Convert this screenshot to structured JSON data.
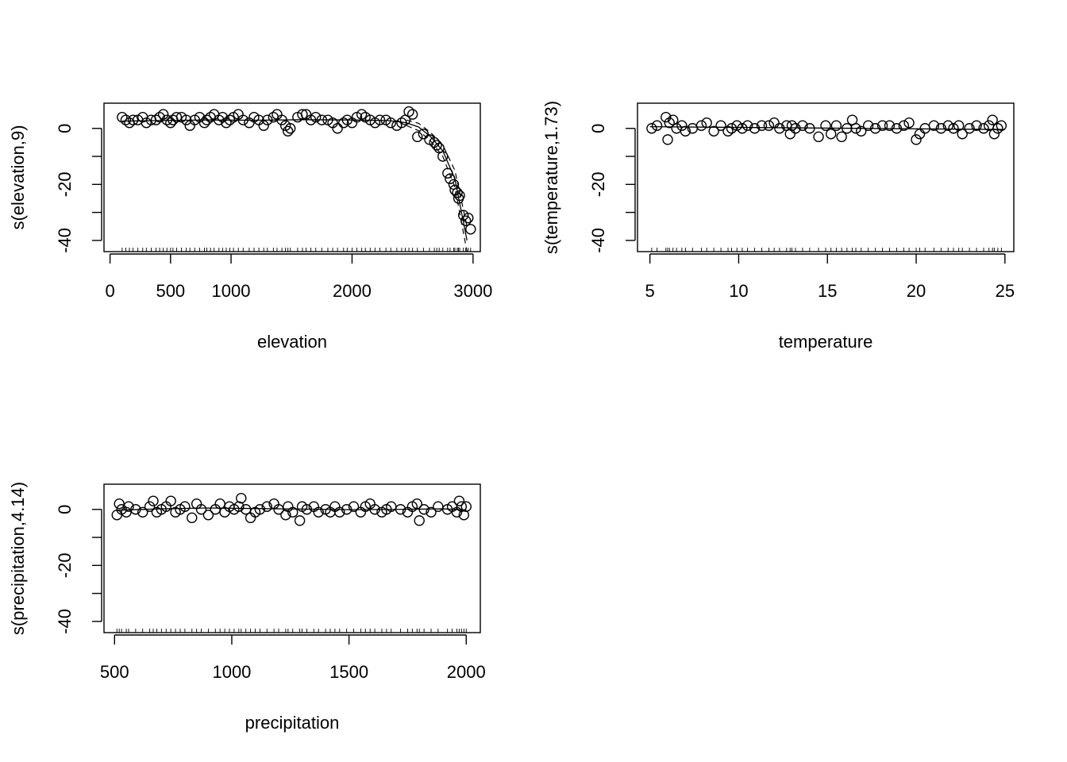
{
  "chart_data": [
    {
      "type": "scatter",
      "title": "",
      "xlabel": "elevation",
      "ylabel": "s(elevation,9)",
      "xlim": [
        -50,
        3060
      ],
      "ylim": [
        -44,
        9
      ],
      "xticks": [
        0,
        500,
        1000,
        2000,
        3000
      ],
      "xtick_labels": [
        "0",
        "500",
        "1000",
        "2000",
        "3000"
      ],
      "yticks": [
        0,
        -20,
        -40
      ],
      "ytick_labels": [
        "0",
        "-20",
        "-40"
      ],
      "ytick_minor": [
        -10,
        -30
      ],
      "grid": false,
      "smooth": {
        "x": [
          100,
          400,
          800,
          1200,
          1600,
          2000,
          2300,
          2450,
          2550,
          2650,
          2750,
          2850,
          2950
        ],
        "y": [
          2.6,
          2.8,
          3.0,
          2.9,
          3.1,
          3.0,
          2.8,
          2.0,
          0.5,
          -3,
          -8,
          -18,
          -40
        ]
      },
      "band_upper": {
        "x": [
          2450,
          2550,
          2650,
          2750,
          2850,
          2950
        ],
        "y": [
          3.0,
          1.8,
          -1.5,
          -6,
          -15,
          -35
        ]
      },
      "band_lower": {
        "x": [
          2450,
          2550,
          2650,
          2750,
          2850,
          2950
        ],
        "y": [
          1.0,
          -0.8,
          -4.5,
          -10,
          -21,
          -44
        ]
      },
      "points": {
        "x": [
          100,
          130,
          160,
          190,
          230,
          270,
          300,
          340,
          380,
          410,
          440,
          470,
          500,
          520,
          550,
          590,
          630,
          660,
          700,
          740,
          780,
          800,
          830,
          860,
          900,
          930,
          960,
          990,
          1020,
          1060,
          1100,
          1150,
          1190,
          1230,
          1270,
          1300,
          1350,
          1380,
          1420,
          1450,
          1470,
          1490,
          1550,
          1590,
          1620,
          1660,
          1700,
          1750,
          1800,
          1840,
          1880,
          1930,
          1960,
          2000,
          2040,
          2080,
          2110,
          2150,
          2190,
          2230,
          2280,
          2320,
          2370,
          2410,
          2440,
          2470,
          2500,
          2540,
          2590,
          2640,
          2680,
          2700,
          2720,
          2750,
          2790,
          2810,
          2840,
          2850,
          2870,
          2880,
          2890,
          2920,
          2940,
          2960,
          2980
        ],
        "y": [
          4,
          3,
          2,
          3,
          3,
          4,
          2,
          3,
          3,
          4,
          5,
          3,
          2,
          3,
          4,
          4,
          3,
          1,
          3,
          4,
          2,
          3,
          4,
          5,
          3,
          4,
          2,
          3,
          4,
          5,
          3,
          2,
          4,
          3,
          1,
          3,
          4,
          5,
          3,
          1,
          -1,
          0,
          4,
          5,
          5,
          3,
          4,
          3,
          3,
          2,
          0,
          2,
          3,
          2,
          4,
          5,
          4,
          3,
          2,
          3,
          3,
          2,
          1,
          2,
          3,
          6,
          5,
          -3,
          -2,
          -4,
          -5,
          -6,
          -7,
          -10,
          -16,
          -18,
          -20,
          -22,
          -23,
          -25,
          -24,
          -31,
          -33,
          -32,
          -36
        ]
      }
    },
    {
      "type": "scatter",
      "title": "",
      "xlabel": "temperature",
      "ylabel": "s(temperature,1.73)",
      "xlim": [
        4.3,
        25.5
      ],
      "ylim": [
        -44,
        9
      ],
      "xticks": [
        5,
        10,
        15,
        20,
        25
      ],
      "xtick_labels": [
        "5",
        "10",
        "15",
        "20",
        "25"
      ],
      "yticks": [
        0,
        -20,
        -40
      ],
      "ytick_labels": [
        "0",
        "-20",
        "-40"
      ],
      "ytick_minor": [
        -10,
        -30
      ],
      "grid": false,
      "smooth": {
        "x": [
          5,
          25
        ],
        "y": [
          0.6,
          -0.4
        ]
      },
      "points": {
        "x": [
          5.1,
          5.4,
          5.9,
          6.0,
          6.1,
          6.3,
          6.5,
          6.8,
          7.0,
          7.4,
          7.9,
          8.2,
          8.6,
          9.0,
          9.4,
          9.6,
          9.9,
          10.2,
          10.5,
          10.9,
          11.3,
          11.7,
          12.0,
          12.3,
          12.7,
          12.9,
          13.0,
          13.2,
          13.6,
          14.0,
          14.5,
          14.9,
          15.2,
          15.5,
          15.8,
          16.1,
          16.4,
          16.6,
          16.9,
          17.3,
          17.7,
          18.1,
          18.5,
          18.9,
          19.3,
          19.6,
          20.0,
          20.2,
          20.5,
          21.0,
          21.4,
          21.8,
          22.1,
          22.4,
          22.6,
          23.0,
          23.4,
          23.8,
          24.1,
          24.3,
          24.4,
          24.6,
          24.8
        ],
        "y": [
          0,
          1,
          4,
          -4,
          2,
          3,
          0,
          1,
          -1,
          0,
          1,
          2,
          -1,
          1,
          -1,
          0,
          1,
          0,
          1,
          0,
          1,
          1,
          2,
          0,
          1,
          -2,
          1,
          0,
          1,
          0,
          -3,
          1,
          -2,
          1,
          -3,
          0,
          3,
          0,
          -1,
          1,
          0,
          1,
          1,
          0,
          1,
          2,
          -4,
          -2,
          0,
          1,
          0,
          1,
          0,
          1,
          -2,
          0,
          1,
          0,
          1,
          3,
          -2,
          0,
          1
        ]
      }
    },
    {
      "type": "scatter",
      "title": "",
      "xlabel": "precipitation",
      "ylabel": "s(precipitation,4.14)",
      "xlim": [
        455,
        2060
      ],
      "ylim": [
        -44,
        9
      ],
      "xticks": [
        500,
        1000,
        1500,
        2000
      ],
      "xtick_labels": [
        "500",
        "1000",
        "1500",
        "2000"
      ],
      "yticks": [
        0,
        -20,
        -40
      ],
      "ytick_labels": [
        "0",
        "-20",
        "-40"
      ],
      "ytick_minor": [
        -10,
        -30
      ],
      "grid": false,
      "smooth": {
        "x": [
          510,
          700,
          900,
          1100,
          1300,
          1500,
          1700,
          1900,
          2000
        ],
        "y": [
          -0.3,
          0.2,
          0.5,
          0.3,
          0.1,
          -0.1,
          0.0,
          0.2,
          -0.2
        ]
      },
      "points": {
        "x": [
          510,
          520,
          530,
          550,
          560,
          590,
          620,
          650,
          665,
          680,
          700,
          720,
          740,
          760,
          780,
          800,
          830,
          850,
          870,
          900,
          930,
          950,
          970,
          990,
          1010,
          1030,
          1040,
          1060,
          1080,
          1100,
          1120,
          1150,
          1180,
          1200,
          1230,
          1240,
          1260,
          1290,
          1300,
          1320,
          1350,
          1370,
          1400,
          1420,
          1440,
          1460,
          1490,
          1520,
          1550,
          1570,
          1590,
          1610,
          1640,
          1660,
          1680,
          1720,
          1750,
          1770,
          1790,
          1800,
          1820,
          1850,
          1880,
          1920,
          1940,
          1960,
          1970,
          1980,
          1990,
          2000
        ],
        "y": [
          -2,
          2,
          0,
          -1,
          1,
          0,
          -1,
          1,
          3,
          -1,
          0,
          1,
          3,
          -1,
          0,
          1,
          -3,
          2,
          0,
          -2,
          0,
          2,
          -1,
          1,
          0,
          1,
          4,
          0,
          -3,
          -1,
          0,
          1,
          2,
          0,
          -2,
          1,
          -1,
          -4,
          1,
          0,
          1,
          -1,
          0,
          -1,
          1,
          -1,
          0,
          1,
          -1,
          1,
          2,
          0,
          -1,
          0,
          1,
          0,
          -1,
          1,
          2,
          -4,
          0,
          -1,
          1,
          0,
          1,
          -1,
          3,
          1,
          -2,
          1
        ]
      }
    }
  ]
}
